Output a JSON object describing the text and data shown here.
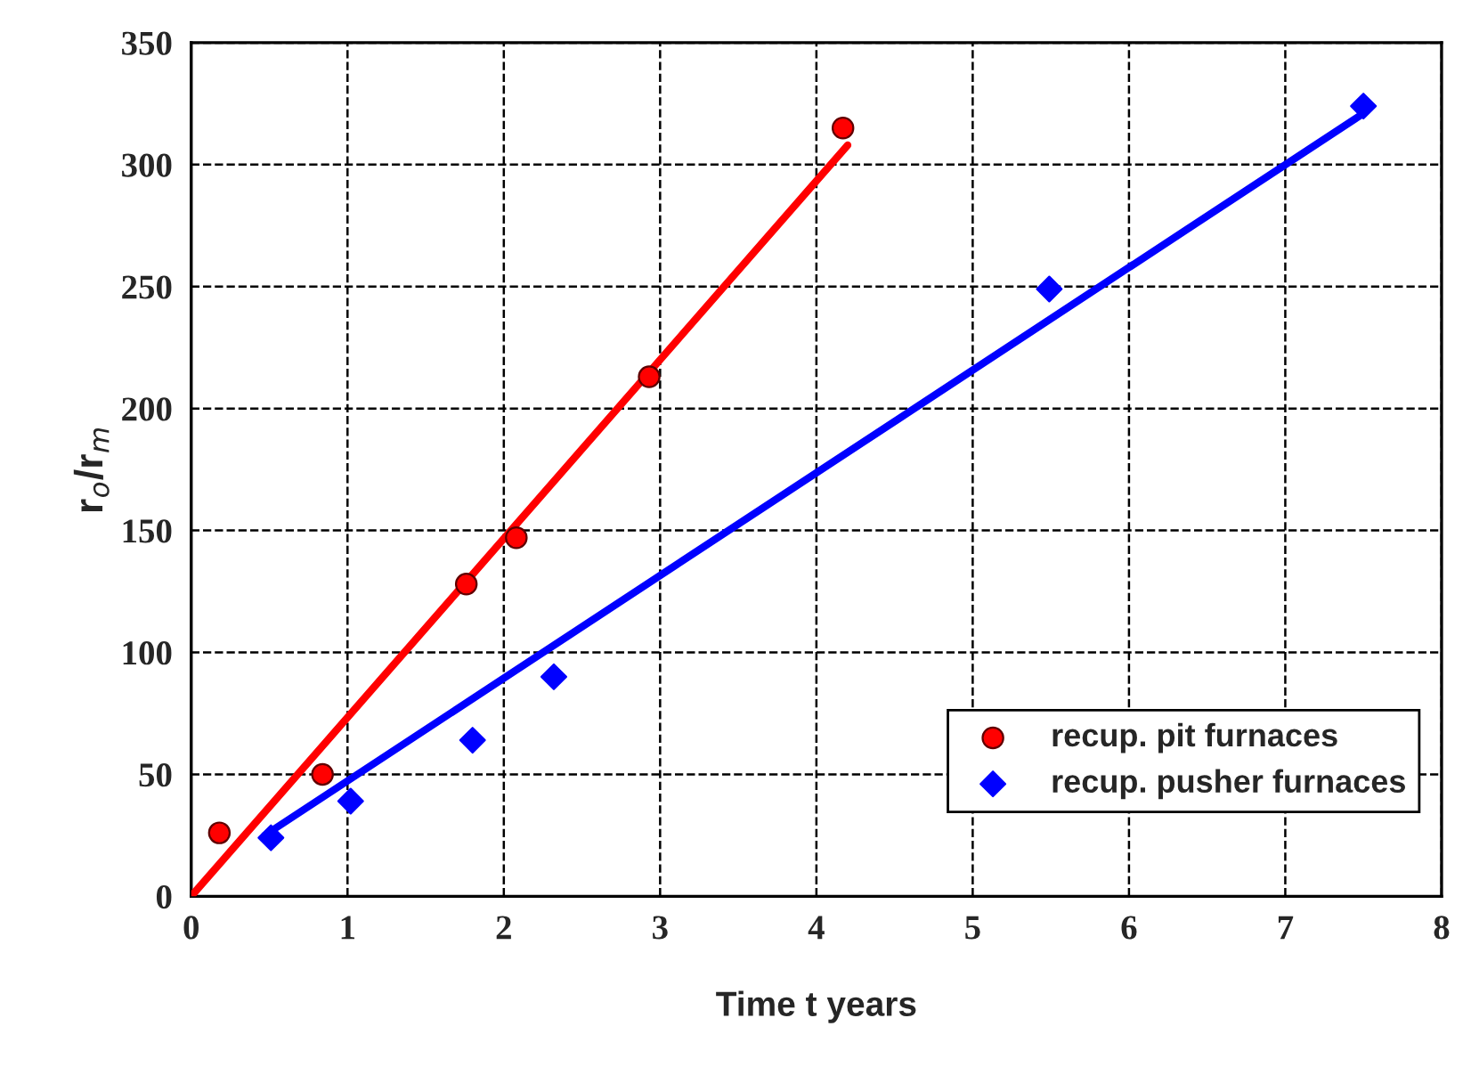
{
  "chart_data": {
    "type": "scatter",
    "xlabel": "Time t years",
    "ylabel": "r$_{o}$/r$_{m}$",
    "xlim": [
      0,
      8
    ],
    "ylim": [
      0,
      350
    ],
    "xticks": [
      0,
      1,
      2,
      3,
      4,
      5,
      6,
      7,
      8
    ],
    "yticks": [
      0,
      50,
      100,
      150,
      200,
      250,
      300,
      350
    ],
    "grid": true,
    "legend": "bottom right",
    "series": [
      {
        "name": "recup. pit furnaces",
        "marker": "circle",
        "color": "#ff0000",
        "x": [
          0.18,
          0.84,
          1.76,
          2.08,
          2.93,
          4.17
        ],
        "values": [
          26,
          50,
          128,
          147,
          213,
          315
        ]
      },
      {
        "name": "recup. pusher furnaces",
        "marker": "diamond",
        "color": "#0000ff",
        "x": [
          0.51,
          1.02,
          1.8,
          2.32,
          5.49,
          7.5
        ],
        "values": [
          24,
          39,
          64,
          90,
          249,
          324
        ]
      },
      {
        "type": "line",
        "line_style": "solid",
        "color": "#ff0000",
        "x": [
          0,
          4.2
        ],
        "values": [
          0,
          308
        ]
      },
      {
        "type": "line",
        "line_style": "solid",
        "color": "#0000ff",
        "x": [
          0.47,
          7.5
        ],
        "values": [
          25,
          321
        ]
      }
    ]
  }
}
